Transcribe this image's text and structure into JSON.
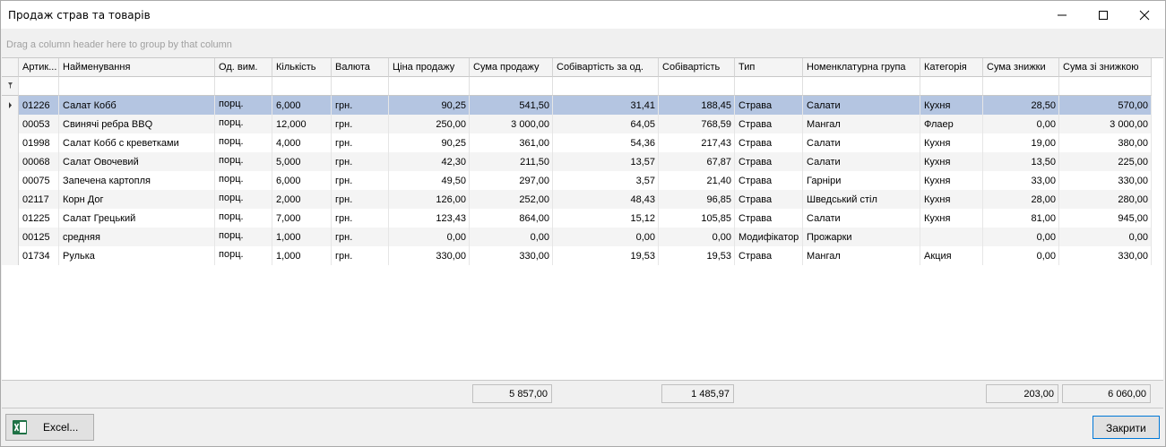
{
  "window": {
    "title": "Продаж страв та товарів",
    "minimize_icon": "minimize-icon",
    "maximize_icon": "maximize-icon",
    "close_icon": "close-icon"
  },
  "group_panel": {
    "hint": "Drag a column header here to group by that column"
  },
  "columns": [
    {
      "key": "art",
      "label": "Артик..."
    },
    {
      "key": "name",
      "label": "Найменування"
    },
    {
      "key": "unit",
      "label": "Од. вим."
    },
    {
      "key": "qty",
      "label": "Кількість"
    },
    {
      "key": "cur",
      "label": "Валюта"
    },
    {
      "key": "price",
      "label": "Ціна продажу"
    },
    {
      "key": "sum",
      "label": "Сума продажу"
    },
    {
      "key": "costu",
      "label": "Собівартість за од."
    },
    {
      "key": "cost",
      "label": "Собівартість"
    },
    {
      "key": "type",
      "label": "Тип"
    },
    {
      "key": "group",
      "label": "Номенклатурна група"
    },
    {
      "key": "cat",
      "label": "Категорія"
    },
    {
      "key": "disc",
      "label": "Сума знижки"
    },
    {
      "key": "total",
      "label": "Сума зі знижкою"
    }
  ],
  "rows": [
    [
      "01226",
      "Салат Кобб",
      "порц.",
      "6,000",
      "грн.",
      "90,25",
      "541,50",
      "31,41",
      "188,45",
      "Страва",
      "Салати",
      "Кухня",
      "28,50",
      "570,00"
    ],
    [
      "00053",
      "Свинячі ребра BBQ",
      "порц.",
      "12,000",
      "грн.",
      "250,00",
      "3 000,00",
      "64,05",
      "768,59",
      "Страва",
      "Мангал",
      "Флаер",
      "0,00",
      "3 000,00"
    ],
    [
      "01998",
      "Салат Кобб с креветками",
      "порц.",
      "4,000",
      "грн.",
      "90,25",
      "361,00",
      "54,36",
      "217,43",
      "Страва",
      "Салати",
      "Кухня",
      "19,00",
      "380,00"
    ],
    [
      "00068",
      "Салат Овочевий",
      "порц.",
      "5,000",
      "грн.",
      "42,30",
      "211,50",
      "13,57",
      "67,87",
      "Страва",
      "Салати",
      "Кухня",
      "13,50",
      "225,00"
    ],
    [
      "00075",
      "Запечена картопля",
      "порц.",
      "6,000",
      "грн.",
      "49,50",
      "297,00",
      "3,57",
      "21,40",
      "Страва",
      "Гарніри",
      "Кухня",
      "33,00",
      "330,00"
    ],
    [
      "02117",
      "Корн Дог",
      "порц.",
      "2,000",
      "грн.",
      "126,00",
      "252,00",
      "48,43",
      "96,85",
      "Страва",
      "Шведський стіл",
      "Кухня",
      "28,00",
      "280,00"
    ],
    [
      "01225",
      "Салат Грецький",
      "порц.",
      "7,000",
      "грн.",
      "123,43",
      "864,00",
      "15,12",
      "105,85",
      "Страва",
      "Салати",
      "Кухня",
      "81,00",
      "945,00"
    ],
    [
      "00125",
      "средняя",
      "порц.",
      "1,000",
      "грн.",
      "0,00",
      "0,00",
      "0,00",
      "0,00",
      "Модифікатор",
      "Прожарки",
      "",
      "0,00",
      "0,00"
    ],
    [
      "01734",
      "Рулька",
      "порц.",
      "1,000",
      "грн.",
      "330,00",
      "330,00",
      "19,53",
      "19,53",
      "Страва",
      "Мангал",
      "Акция",
      "0,00",
      "330,00"
    ]
  ],
  "selected_row": 0,
  "totals": {
    "sum": "5 857,00",
    "cost": "1 485,97",
    "disc": "203,00",
    "total": "6 060,00"
  },
  "buttons": {
    "excel": "Excel...",
    "close": "Закрити"
  },
  "excel_icon": "excel-icon",
  "colors": {
    "selection": "#b4c5e1",
    "close_button_border": "#0078d7"
  }
}
